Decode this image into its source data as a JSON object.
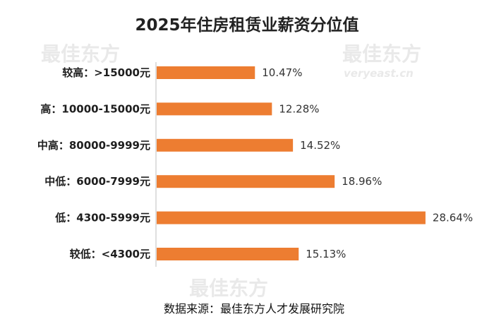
{
  "watermark": {
    "brand": "最佳东方",
    "domain": "veryeast.cn"
  },
  "chart_data": {
    "type": "bar",
    "orientation": "horizontal",
    "title": "2025年住房租赁业薪资分位值",
    "categories": [
      "较高：>15000元",
      "高：10000-15000元",
      "中高：80000-9999元",
      "中低：6000-7999元",
      "低：4300-5999元",
      "较低：<4300元"
    ],
    "values": [
      10.47,
      12.28,
      14.52,
      18.96,
      28.64,
      15.13
    ],
    "value_labels": [
      "10.47%",
      "12.28%",
      "14.52%",
      "18.96%",
      "28.64%",
      "15.13%"
    ],
    "xlim": [
      0,
      30
    ],
    "unit": "%",
    "bar_color": "#ED7D31",
    "axis_color": "#bfbfbf",
    "grid": false,
    "legend": "none",
    "source": "数据来源：最佳东方人才发展研究院"
  }
}
